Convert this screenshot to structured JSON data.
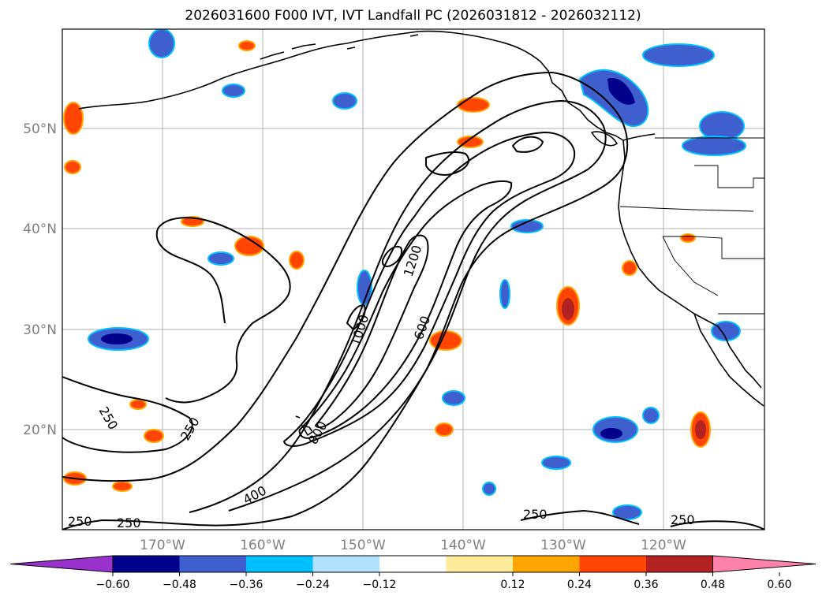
{
  "title": "2026031600 F000 IVT, IVT Landfall PC (2026031812 - 2026032112)",
  "map": {
    "lat_labels": [
      "50°N",
      "40°N",
      "30°N",
      "20°N"
    ],
    "lon_labels": [
      "170°W",
      "160°W",
      "150°W",
      "140°W",
      "130°W",
      "120°W"
    ],
    "ivt_contour_labels": [
      "250",
      "250",
      "250",
      "250",
      "250",
      "250",
      "400",
      "600",
      "800",
      "1000",
      "1200"
    ]
  },
  "colorbar": {
    "colors": [
      "#9932cc",
      "#00008b",
      "#3f5fcf",
      "#00bfff",
      "#b0e2ff",
      "#ffffff",
      "#ffeb99",
      "#ffa500",
      "#ff4500",
      "#b22222",
      "#ff82ab"
    ],
    "tick_labels": [
      "−0.60",
      "−0.48",
      "−0.36",
      "−0.24",
      "−0.12",
      "0.12",
      "0.24",
      "0.36",
      "0.48",
      "0.60"
    ],
    "bounds": [
      -0.6,
      -0.48,
      -0.36,
      -0.24,
      -0.12,
      0.12,
      0.24,
      0.36,
      0.48,
      0.6
    ]
  },
  "shading_colors": {
    "neg_light": "#b0e2ff",
    "neg_mid": "#00bfff",
    "neg_strong": "#3f5fcf",
    "neg_max": "#00008b",
    "neg_extreme": "#9932cc",
    "pos_light": "#ffeb99",
    "pos_mid": "#ffa500",
    "pos_strong": "#ff4500",
    "pos_max": "#b22222"
  }
}
